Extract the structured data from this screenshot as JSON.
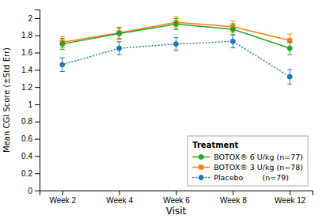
{
  "chart_data": {
    "type": "line",
    "xlabel": "Visit",
    "ylabel": "Mean CGI Score (±Std Err)",
    "categories": [
      "Week 2",
      "Week 4",
      "Week 6",
      "Week 8",
      "Week 12"
    ],
    "series": [
      {
        "name": "BOTOX® 6 U/kg (n=77)",
        "values": [
          1.7,
          1.82,
          1.93,
          1.87,
          1.65
        ],
        "errors": [
          0.065,
          0.065,
          0.065,
          0.065,
          0.075
        ],
        "marker": "circle",
        "line_style": "solid"
      },
      {
        "name": "BOTOX® 3 U/kg (n=78)",
        "values": [
          1.72,
          1.83,
          1.95,
          1.9,
          1.74
        ],
        "errors": [
          0.065,
          0.065,
          0.065,
          0.065,
          0.075
        ],
        "marker": "square",
        "line_style": "solid"
      },
      {
        "name": "Placebo        (n=79)",
        "values": [
          1.46,
          1.65,
          1.7,
          1.73,
          1.32
        ],
        "errors": [
          0.08,
          0.075,
          0.075,
          0.075,
          0.085
        ],
        "marker": "circle",
        "line_style": "dotted"
      }
    ],
    "ylim": [
      0,
      2.1
    ],
    "yticks": [
      0,
      0.2,
      0.4,
      0.6,
      0.8,
      1,
      1.2,
      1.4,
      1.6,
      1.8,
      2
    ],
    "legend_title": "Treatment",
    "legend": "lower right",
    "grid": false
  }
}
